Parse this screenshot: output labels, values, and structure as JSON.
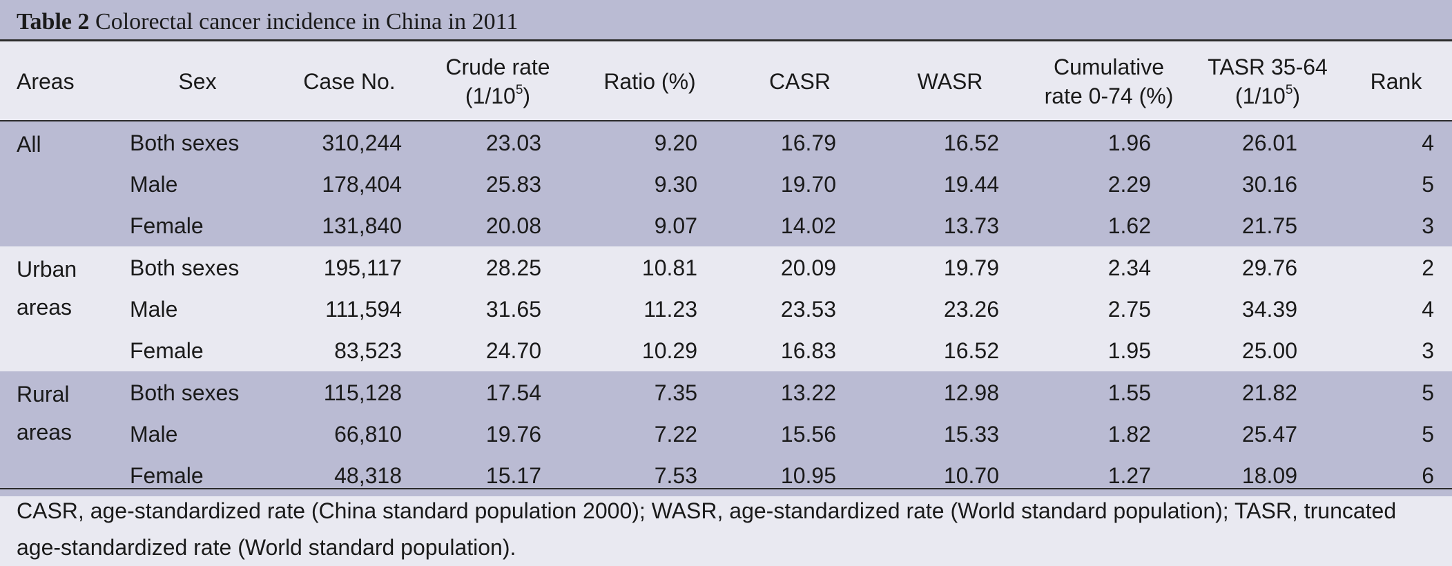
{
  "title": {
    "label": "Table 2",
    "text": "Colorectal cancer incidence in China in 2011"
  },
  "header": {
    "areas": "Areas",
    "sex": "Sex",
    "case_no": "Case No.",
    "crude_line1": "Crude rate",
    "crude_line2_pre": "(1/10",
    "crude_sup": "5",
    "crude_line2_post": ")",
    "ratio": "Ratio (%)",
    "casr": "CASR",
    "wasr": "WASR",
    "cum_line1": "Cumulative",
    "cum_line2": "rate 0-74 (%)",
    "tasr_line1": "TASR 35-64",
    "tasr_line2_pre": "(1/10",
    "tasr_sup": "5",
    "tasr_line2_post": ")",
    "rank": "Rank"
  },
  "groups": [
    {
      "area": "All",
      "rows": [
        {
          "sex": "Both sexes",
          "case_no": "310,244",
          "crude": "23.03",
          "ratio": "9.20",
          "casr": "16.79",
          "wasr": "16.52",
          "cum": "1.96",
          "tasr": "26.01",
          "rank": "4"
        },
        {
          "sex": "Male",
          "case_no": "178,404",
          "crude": "25.83",
          "ratio": "9.30",
          "casr": "19.70",
          "wasr": "19.44",
          "cum": "2.29",
          "tasr": "30.16",
          "rank": "5"
        },
        {
          "sex": "Female",
          "case_no": "131,840",
          "crude": "20.08",
          "ratio": "9.07",
          "casr": "14.02",
          "wasr": "13.73",
          "cum": "1.62",
          "tasr": "21.75",
          "rank": "3"
        }
      ]
    },
    {
      "area": "Urban areas",
      "rows": [
        {
          "sex": "Both sexes",
          "case_no": "195,117",
          "crude": "28.25",
          "ratio": "10.81",
          "casr": "20.09",
          "wasr": "19.79",
          "cum": "2.34",
          "tasr": "29.76",
          "rank": "2"
        },
        {
          "sex": "Male",
          "case_no": "111,594",
          "crude": "31.65",
          "ratio": "11.23",
          "casr": "23.53",
          "wasr": "23.26",
          "cum": "2.75",
          "tasr": "34.39",
          "rank": "4"
        },
        {
          "sex": "Female",
          "case_no": "83,523",
          "crude": "24.70",
          "ratio": "10.29",
          "casr": "16.83",
          "wasr": "16.52",
          "cum": "1.95",
          "tasr": "25.00",
          "rank": "3"
        }
      ]
    },
    {
      "area": "Rural areas",
      "rows": [
        {
          "sex": "Both sexes",
          "case_no": "115,128",
          "crude": "17.54",
          "ratio": "7.35",
          "casr": "13.22",
          "wasr": "12.98",
          "cum": "1.55",
          "tasr": "21.82",
          "rank": "5"
        },
        {
          "sex": "Male",
          "case_no": "66,810",
          "crude": "19.76",
          "ratio": "7.22",
          "casr": "15.56",
          "wasr": "15.33",
          "cum": "1.82",
          "tasr": "25.47",
          "rank": "5"
        },
        {
          "sex": "Female",
          "case_no": "48,318",
          "crude": "15.17",
          "ratio": "7.53",
          "casr": "10.95",
          "wasr": "10.70",
          "cum": "1.27",
          "tasr": "18.09",
          "rank": "6"
        }
      ]
    }
  ],
  "footnote": "CASR, age-standardized rate (China standard population 2000); WASR, age-standardized rate (World standard population); TASR, truncated age-standardized rate (World standard population).",
  "colors": {
    "band_purple": "#babbd3",
    "band_light": "#e9e9f1",
    "rule": "#2b2b2b"
  }
}
